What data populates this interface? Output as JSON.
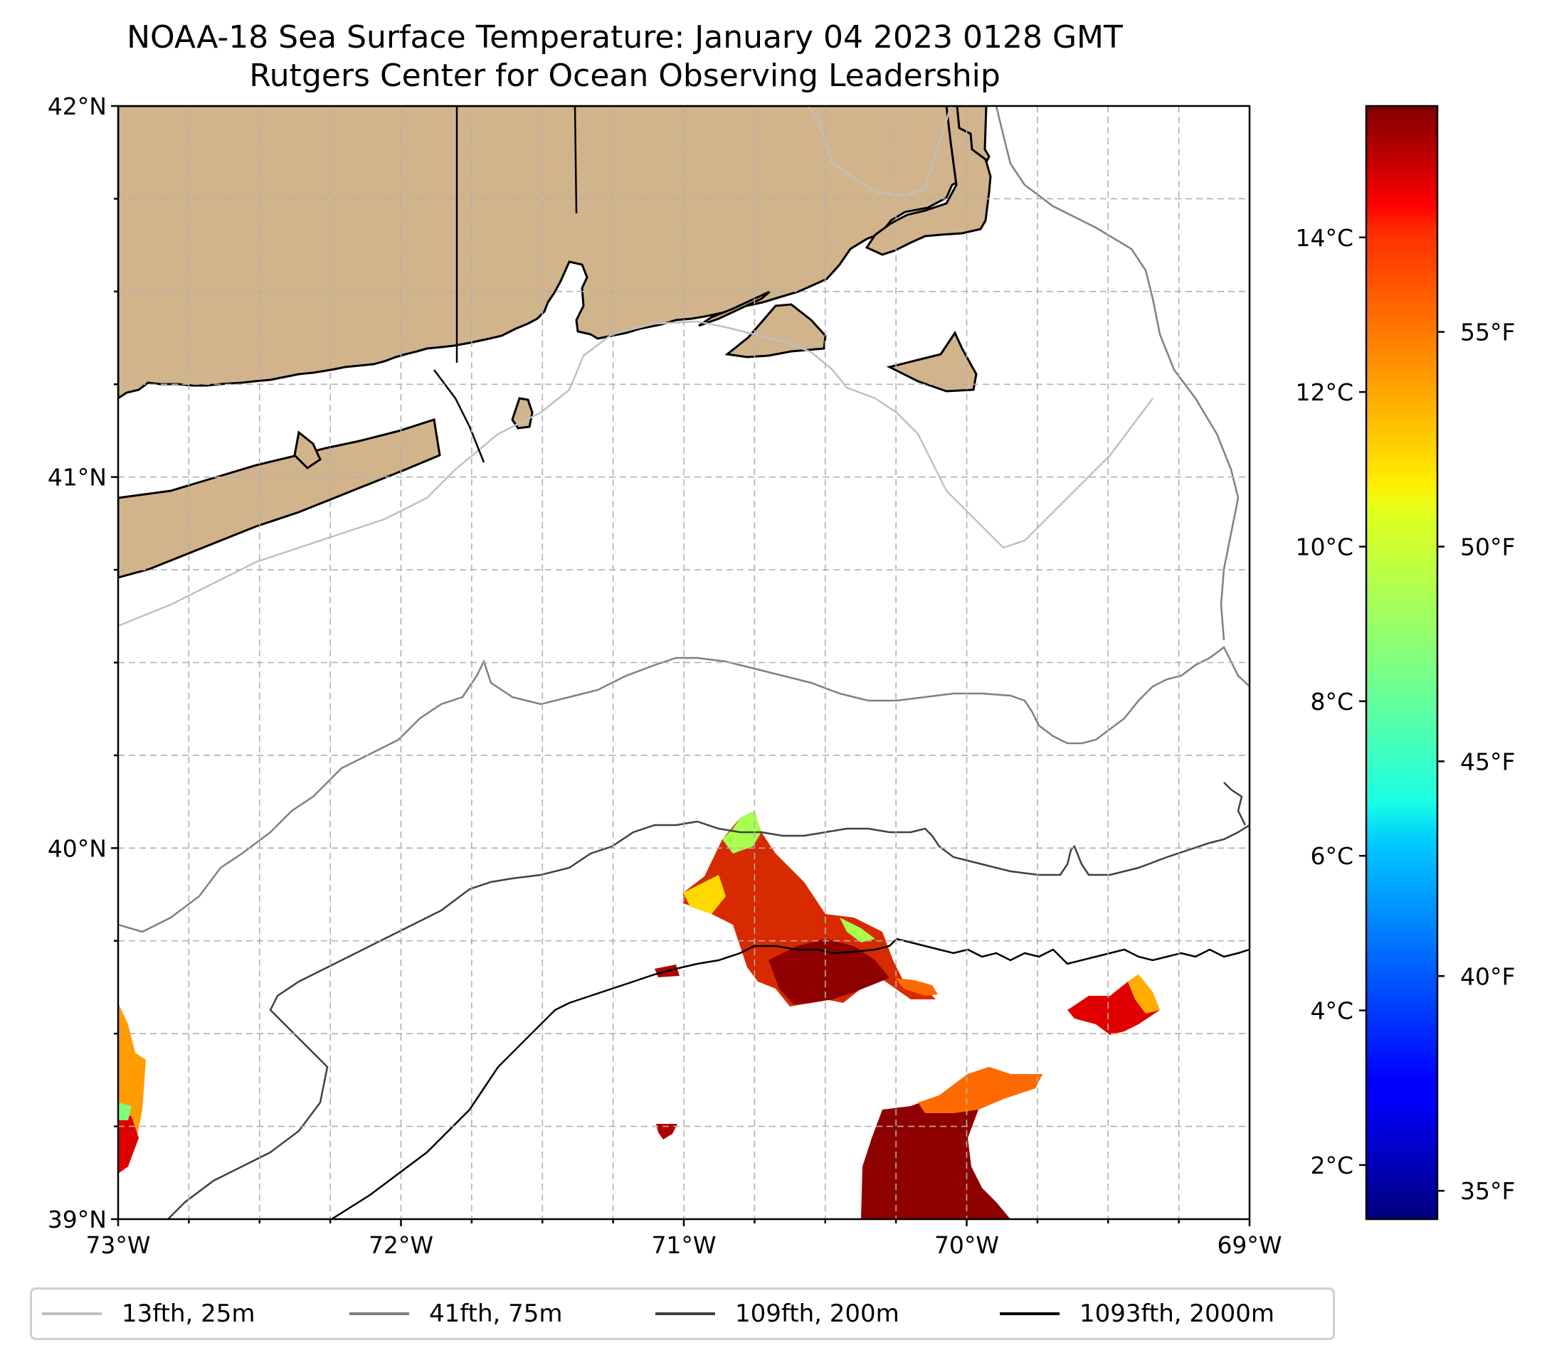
{
  "title": {
    "line1": "NOAA-18 Sea Surface Temperature: January 04 2023 0128 GMT",
    "line2": "Rutgers Center for Ocean Observing Leadership"
  },
  "map": {
    "extent": {
      "lon_min": -73,
      "lon_max": -69,
      "lat_min": 39,
      "lat_max": 42
    },
    "lon_ticks": [
      {
        "value": -73,
        "label": "73°W"
      },
      {
        "value": -72,
        "label": "72°W"
      },
      {
        "value": -71,
        "label": "71°W"
      },
      {
        "value": -70,
        "label": "70°W"
      },
      {
        "value": -69,
        "label": "69°W"
      }
    ],
    "lat_ticks": [
      {
        "value": 42,
        "label": "42°N"
      },
      {
        "value": 41,
        "label": "41°N"
      },
      {
        "value": 40,
        "label": "40°N"
      },
      {
        "value": 39,
        "label": "39°N"
      }
    ],
    "land_color": "#d2b48c",
    "grid": "dashed"
  },
  "colorbar": {
    "colormap": "jet",
    "range_c": [
      1.3,
      15.7
    ],
    "celsius_ticks": [
      {
        "value": 2,
        "label": "2°C"
      },
      {
        "value": 4,
        "label": "4°C"
      },
      {
        "value": 6,
        "label": "6°C"
      },
      {
        "value": 8,
        "label": "8°C"
      },
      {
        "value": 10,
        "label": "10°C"
      },
      {
        "value": 12,
        "label": "12°C"
      },
      {
        "value": 14,
        "label": "14°C"
      }
    ],
    "fahrenheit_ticks": [
      {
        "value": 35,
        "label": "35°F"
      },
      {
        "value": 40,
        "label": "40°F"
      },
      {
        "value": 45,
        "label": "45°F"
      },
      {
        "value": 50,
        "label": "50°F"
      },
      {
        "value": 55,
        "label": "55°F"
      }
    ]
  },
  "legend": {
    "items": [
      {
        "label": "13fth, 25m",
        "color": "#c0c0c0"
      },
      {
        "label": "41fth, 75m",
        "color": "#808080"
      },
      {
        "label": "109fth, 200m",
        "color": "#404040"
      },
      {
        "label": "1093fth, 2000m",
        "color": "#000000"
      }
    ]
  }
}
